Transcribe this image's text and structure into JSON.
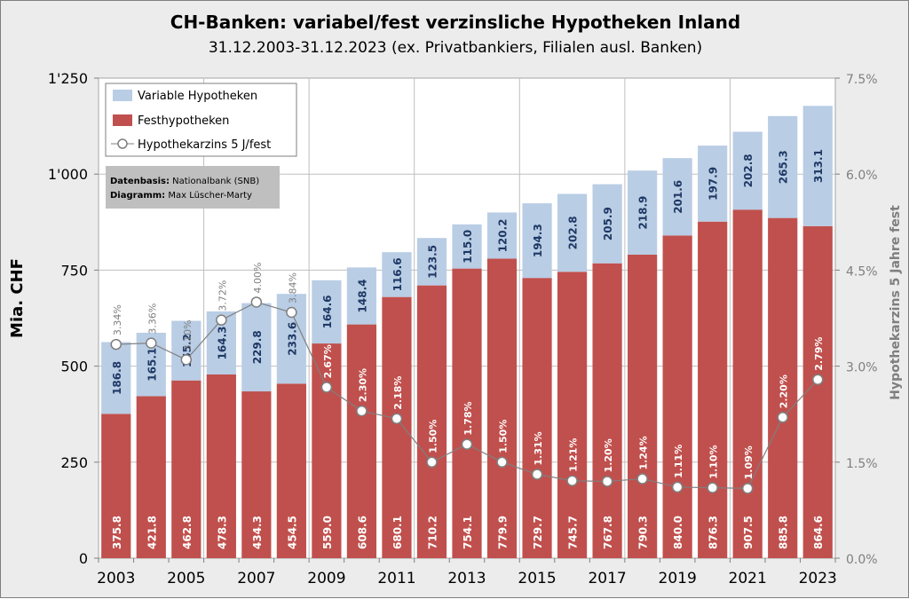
{
  "chart_data": {
    "type": "bar",
    "title": "CH-Banken: variabel/fest verzinsliche Hypotheken Inland",
    "subtitle": "31.12.2003-31.12.2023 (ex. Privatbankiers, Filialen ausl. Banken)",
    "ylabel": "Mia. CHF",
    "y2label": "Hypothekarzins 5 Jahre fest",
    "ylim": [
      0,
      1250
    ],
    "y2lim": [
      0,
      7.5
    ],
    "yticks": [
      "0",
      "250",
      "500",
      "750",
      "1'000",
      "1'250"
    ],
    "y2ticks": [
      "0.0%",
      "1.5%",
      "3.0%",
      "4.5%",
      "6.0%",
      "7.5%"
    ],
    "xticks": [
      "2003",
      "2005",
      "2007",
      "2009",
      "2011",
      "2013",
      "2015",
      "2017",
      "2019",
      "2021",
      "2023"
    ],
    "categories": [
      "2003",
      "2004",
      "2005",
      "2006",
      "2007",
      "2008",
      "2009",
      "2010",
      "2011",
      "2012",
      "2013",
      "2014",
      "2015",
      "2016",
      "2017",
      "2018",
      "2019",
      "2020",
      "2021",
      "2022",
      "2023"
    ],
    "stacked": true,
    "grid": true,
    "legend_position": "top-left",
    "series": [
      {
        "name": "Festhypotheken",
        "color": "#c0504d",
        "values": [
          375.8,
          421.8,
          462.8,
          478.3,
          434.3,
          454.5,
          559.0,
          608.6,
          680.1,
          710.2,
          754.1,
          779.9,
          729.7,
          745.7,
          767.8,
          790.3,
          840.0,
          876.3,
          907.5,
          885.8,
          864.6
        ],
        "labels": [
          "375.8",
          "421.8",
          "462.8",
          "478.3",
          "434.3",
          "454.5",
          "559.0",
          "608.6",
          "680.1",
          "710.2",
          "754.1",
          "779.9",
          "729.7",
          "745.7",
          "767.8",
          "790.3",
          "840.0",
          "876.3",
          "907.5",
          "885.8",
          "864.6"
        ]
      },
      {
        "name": "Variable Hypotheken",
        "color": "#b9cde5",
        "values": [
          186.8,
          165.1,
          155.2,
          164.3,
          229.8,
          233.6,
          164.6,
          148.4,
          116.6,
          123.5,
          115.0,
          120.2,
          194.3,
          202.8,
          205.9,
          218.9,
          201.6,
          197.9,
          202.8,
          265.3,
          313.1
        ],
        "labels": [
          "186.8",
          "165.1",
          "155.2",
          "164.3",
          "229.8",
          "233.6",
          "164.6",
          "148.4",
          "116.6",
          "123.5",
          "115.0",
          "120.2",
          "194.3",
          "202.8",
          "205.9",
          "218.9",
          "201.6",
          "197.9",
          "202.8",
          "265.3",
          "313.1"
        ]
      },
      {
        "name": "Hypothekarzins 5 J/fest",
        "type": "line",
        "axis": "right",
        "color": "#7f7f7f",
        "values": [
          3.34,
          3.36,
          3.1,
          3.72,
          4.0,
          3.84,
          2.67,
          2.3,
          2.18,
          1.5,
          1.78,
          1.5,
          1.31,
          1.21,
          1.2,
          1.24,
          1.11,
          1.1,
          1.09,
          2.2,
          2.79
        ],
        "labels": [
          "3.34%",
          "3.36%",
          "3.10%",
          "3.72%",
          "4.00%",
          "3.84%",
          "2.67%",
          "2.30%",
          "2.18%",
          "1.50%",
          "1.78%",
          "1.50%",
          "1.31%",
          "1.21%",
          "1.20%",
          "1.24%",
          "1.11%",
          "1.10%",
          "1.09%",
          "2.20%",
          "2.79%"
        ]
      }
    ],
    "legend": [
      "Variable Hypotheken",
      "Festhypotheken",
      "Hypothekarzins 5 J/fest"
    ],
    "source_box": {
      "line1_label": "Datenbasis:",
      "line1_value": "Nationalbank (SNB)",
      "line2_label": "Diagramm:",
      "line2_value": "Max Lüscher-Marty"
    }
  }
}
